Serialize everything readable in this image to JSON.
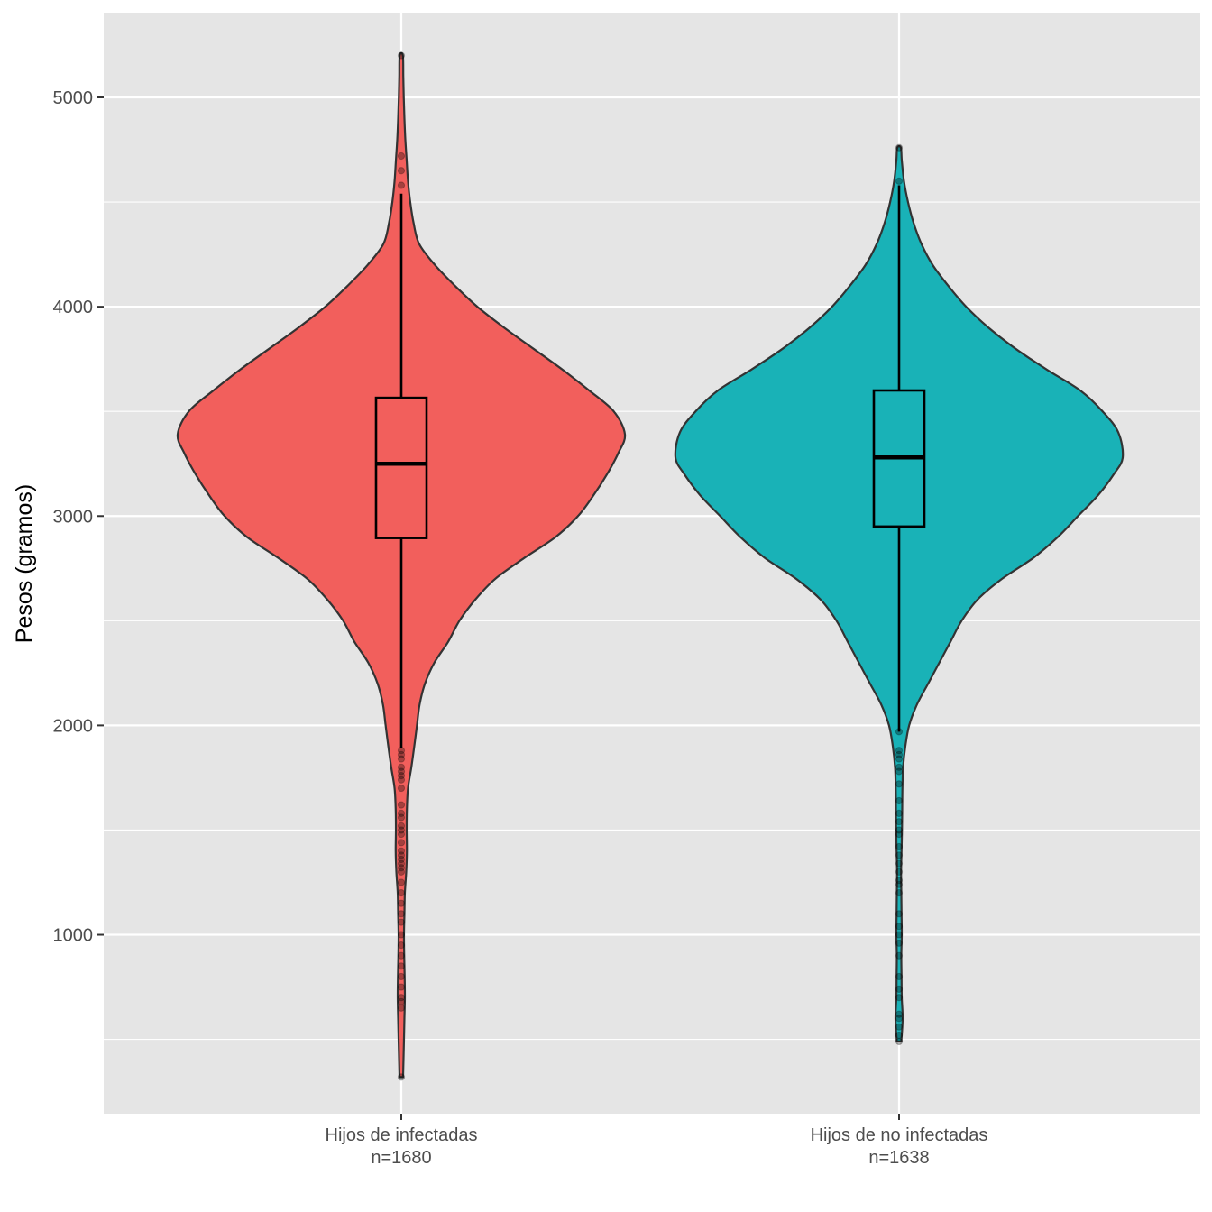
{
  "chart_data": {
    "type": "violin",
    "title": "",
    "xlabel": "",
    "ylabel": "Pesos (gramos)",
    "ylim": [
      145,
      5405
    ],
    "y_ticks": [
      1000,
      2000,
      3000,
      4000,
      5000
    ],
    "grid": true,
    "legend": "none",
    "colors": {
      "panel_bg": "#e5e5e5",
      "grid": "#ffffff",
      "outline": "#333333"
    },
    "categories": [
      {
        "name": "Hijos de infectadas",
        "count_label": "n=1680"
      },
      {
        "name": "Hijos de no infectadas",
        "count_label": "n=1638"
      }
    ],
    "series": [
      {
        "category": "Hijos de infectadas",
        "fill": "#f25f5c",
        "min": 320,
        "max": 5200,
        "q1": 2895,
        "median": 3250,
        "q3": 3565,
        "whisker_low": 1890,
        "whisker_high": 4540,
        "density": [
          [
            320,
            0.008
          ],
          [
            500,
            0.012
          ],
          [
            600,
            0.014
          ],
          [
            700,
            0.016
          ],
          [
            800,
            0.015
          ],
          [
            900,
            0.013
          ],
          [
            1000,
            0.012
          ],
          [
            1100,
            0.014
          ],
          [
            1200,
            0.016
          ],
          [
            1300,
            0.022
          ],
          [
            1400,
            0.025
          ],
          [
            1500,
            0.024
          ],
          [
            1600,
            0.025
          ],
          [
            1700,
            0.03
          ],
          [
            1800,
            0.045
          ],
          [
            1900,
            0.058
          ],
          [
            2000,
            0.07
          ],
          [
            2100,
            0.082
          ],
          [
            2200,
            0.106
          ],
          [
            2300,
            0.148
          ],
          [
            2400,
            0.21
          ],
          [
            2500,
            0.26
          ],
          [
            2600,
            0.33
          ],
          [
            2700,
            0.42
          ],
          [
            2800,
            0.55
          ],
          [
            2900,
            0.69
          ],
          [
            3000,
            0.79
          ],
          [
            3100,
            0.86
          ],
          [
            3200,
            0.92
          ],
          [
            3300,
            0.97
          ],
          [
            3390,
            1.0
          ],
          [
            3500,
            0.95
          ],
          [
            3600,
            0.84
          ],
          [
            3700,
            0.72
          ],
          [
            3800,
            0.59
          ],
          [
            3900,
            0.46
          ],
          [
            4000,
            0.34
          ],
          [
            4100,
            0.24
          ],
          [
            4200,
            0.15
          ],
          [
            4300,
            0.08
          ],
          [
            4400,
            0.055
          ],
          [
            4500,
            0.04
          ],
          [
            4600,
            0.03
          ],
          [
            4700,
            0.024
          ],
          [
            4800,
            0.018
          ],
          [
            4900,
            0.014
          ],
          [
            5000,
            0.011
          ],
          [
            5100,
            0.009
          ],
          [
            5200,
            0.007
          ]
        ],
        "points": [
          5200,
          4720,
          4650,
          4580,
          1880,
          1860,
          1840,
          1800,
          1780,
          1760,
          1740,
          1700,
          1620,
          1580,
          1560,
          1520,
          1500,
          1480,
          1440,
          1400,
          1380,
          1360,
          1340,
          1320,
          1300,
          1250,
          1200,
          1150,
          1100,
          1060,
          1000,
          950,
          900,
          850,
          800,
          750,
          700,
          680,
          650,
          320
        ]
      },
      {
        "category": "Hijos de no infectadas",
        "fill": "#19b2b7",
        "min": 490,
        "max": 4760,
        "q1": 2950,
        "median": 3280,
        "q3": 3600,
        "whisker_low": 1970,
        "whisker_high": 4580,
        "density": [
          [
            490,
            0.01
          ],
          [
            600,
            0.016
          ],
          [
            700,
            0.012
          ],
          [
            800,
            0.011
          ],
          [
            900,
            0.01
          ],
          [
            1000,
            0.012
          ],
          [
            1100,
            0.011
          ],
          [
            1200,
            0.01
          ],
          [
            1300,
            0.009
          ],
          [
            1400,
            0.011
          ],
          [
            1500,
            0.013
          ],
          [
            1600,
            0.014
          ],
          [
            1700,
            0.015
          ],
          [
            1800,
            0.018
          ],
          [
            1900,
            0.028
          ],
          [
            2000,
            0.045
          ],
          [
            2100,
            0.08
          ],
          [
            2200,
            0.13
          ],
          [
            2300,
            0.18
          ],
          [
            2400,
            0.23
          ],
          [
            2500,
            0.28
          ],
          [
            2600,
            0.35
          ],
          [
            2700,
            0.46
          ],
          [
            2800,
            0.6
          ],
          [
            2900,
            0.71
          ],
          [
            3000,
            0.8
          ],
          [
            3100,
            0.89
          ],
          [
            3200,
            0.96
          ],
          [
            3280,
            1.0
          ],
          [
            3400,
            0.98
          ],
          [
            3500,
            0.91
          ],
          [
            3600,
            0.81
          ],
          [
            3700,
            0.66
          ],
          [
            3800,
            0.52
          ],
          [
            3900,
            0.4
          ],
          [
            4000,
            0.3
          ],
          [
            4100,
            0.22
          ],
          [
            4200,
            0.15
          ],
          [
            4300,
            0.1
          ],
          [
            4400,
            0.065
          ],
          [
            4500,
            0.04
          ],
          [
            4600,
            0.022
          ],
          [
            4700,
            0.012
          ],
          [
            4760,
            0.008
          ]
        ],
        "points": [
          4760,
          4600,
          1970,
          1880,
          1860,
          1840,
          1800,
          1780,
          1720,
          1640,
          1580,
          1540,
          1500,
          1480,
          1420,
          1380,
          1340,
          1300,
          1260,
          1240,
          1200,
          1100,
          1040,
          1000,
          960,
          900,
          800,
          740,
          700,
          620,
          600,
          560,
          520,
          490
        ]
      }
    ]
  }
}
